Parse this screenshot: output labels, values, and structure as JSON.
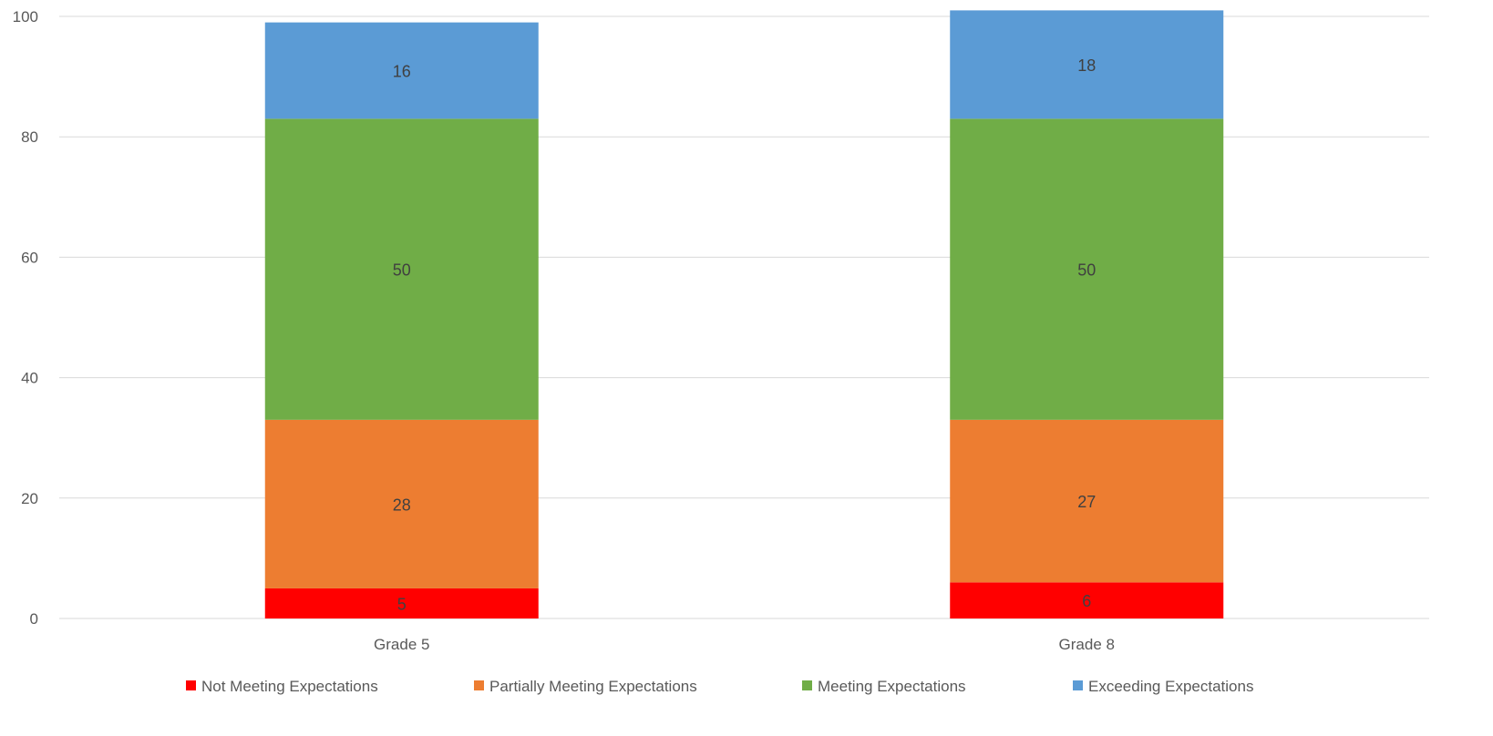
{
  "chart_data": {
    "type": "bar",
    "stacked": true,
    "categories": [
      "Grade 5",
      "Grade 8"
    ],
    "series": [
      {
        "name": "Not Meeting Expectations",
        "values": [
          5,
          6
        ],
        "color": "#ff0000"
      },
      {
        "name": "Partially Meeting Expectations",
        "values": [
          28,
          27
        ],
        "color": "#ed7d31"
      },
      {
        "name": "Meeting Expectations",
        "values": [
          50,
          50
        ],
        "color": "#70ad47"
      },
      {
        "name": "Exceeding Expectations",
        "values": [
          16,
          18
        ],
        "color": "#5b9bd5"
      }
    ],
    "ylim": [
      0,
      100
    ],
    "yticks": [
      "0",
      "20",
      "40",
      "60",
      "80",
      "100"
    ],
    "grid": true,
    "legend": "bottom"
  }
}
